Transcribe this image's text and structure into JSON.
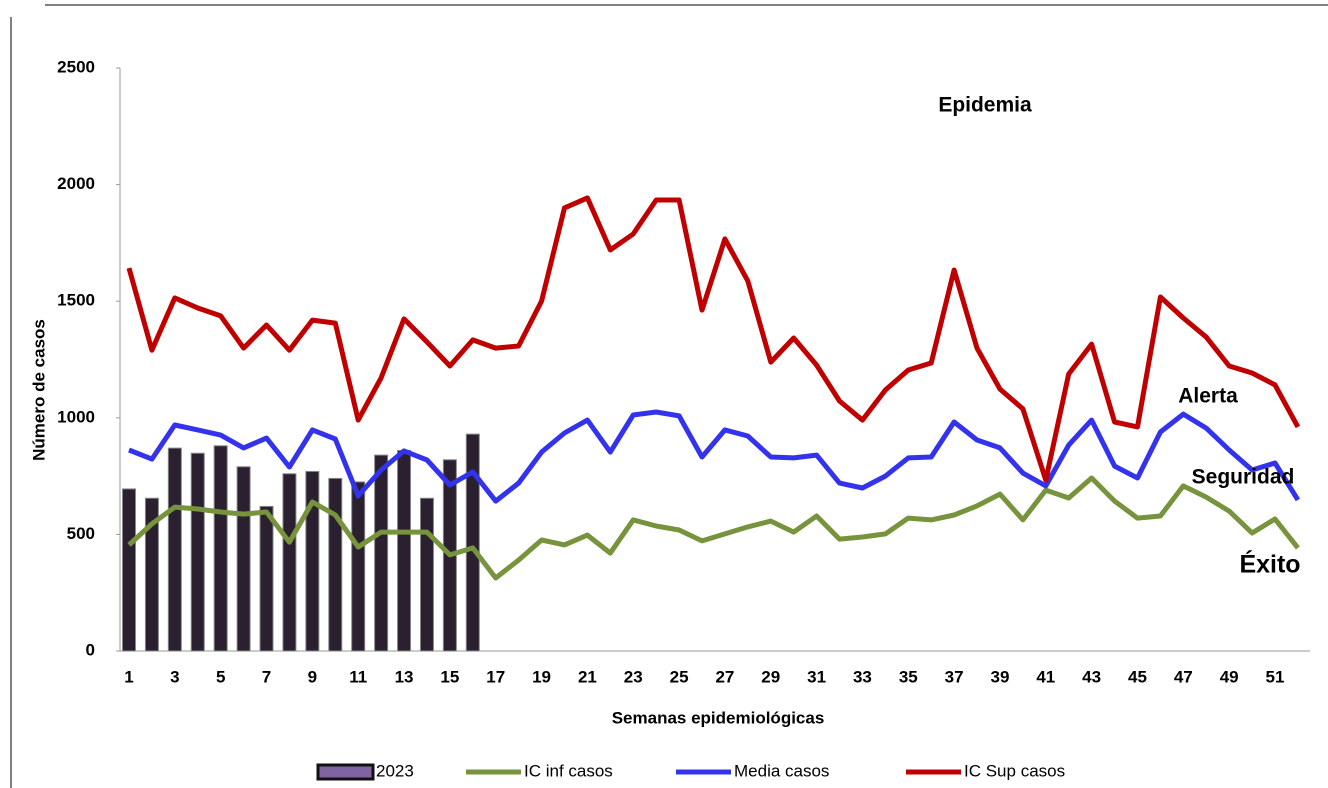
{
  "chart_data": {
    "type": "bar",
    "x_label": "Semanas epidemiológicas",
    "y_label": "Número de casos",
    "categories": [
      1,
      null,
      3,
      null,
      5,
      null,
      7,
      null,
      9,
      null,
      11,
      null,
      13,
      null,
      15,
      null,
      17,
      null,
      19,
      null,
      21,
      null,
      23,
      null,
      25,
      null,
      27,
      null,
      29,
      null,
      31,
      null,
      33,
      null,
      35,
      null,
      37,
      null,
      39,
      null,
      41,
      null,
      43,
      null,
      45,
      null,
      47,
      null,
      49,
      null,
      51,
      null
    ],
    "ylim": [
      0,
      2500
    ],
    "yticks": [
      0,
      500,
      1000,
      1500,
      2000,
      2500
    ],
    "grid": false,
    "legend": "bottom",
    "annotations": [
      "Epidemia",
      "Alerta",
      "Seguridad",
      "Éxito"
    ],
    "series": [
      {
        "name": "2023",
        "type": "bar",
        "color": "#2a2030",
        "values": [
          695,
          655,
          870,
          848,
          880,
          790,
          620,
          760,
          770,
          740,
          725,
          840,
          860,
          655,
          820,
          930,
          null,
          null,
          null,
          null,
          null,
          null,
          null,
          null,
          null,
          null,
          null,
          null,
          null,
          null,
          null,
          null,
          null,
          null,
          null,
          null,
          null,
          null,
          null,
          null,
          null,
          null,
          null,
          null,
          null,
          null,
          null,
          null,
          null,
          null,
          null,
          null
        ]
      },
      {
        "name": "IC inf casos",
        "type": "line",
        "color": "#77933c",
        "values": [
          455,
          545,
          617,
          609,
          596,
          587,
          596,
          467,
          639,
          583,
          446,
          510,
          510,
          510,
          412,
          442,
          313,
          390,
          476,
          455,
          497,
          420,
          562,
          536,
          519,
          472,
          502,
          532,
          557,
          510,
          579,
          480,
          489,
          502,
          570,
          562,
          583,
          622,
          673,
          562,
          690,
          656,
          742,
          643,
          570,
          579,
          708,
          660,
          600,
          506,
          566,
          442
        ]
      },
      {
        "name": "Media casos",
        "type": "line",
        "color": "#3333ee",
        "values": [
          862,
          823,
          969,
          948,
          926,
          871,
          913,
          789,
          948,
          909,
          665,
          776,
          858,
          819,
          712,
          768,
          643,
          720,
          853,
          935,
          990,
          853,
          1012,
          1025,
          1008,
          832,
          948,
          922,
          832,
          828,
          840,
          720,
          699,
          750,
          828,
          832,
          982,
          905,
          871,
          763,
          708,
          883,
          990,
          793,
          742,
          939,
          1016,
          956,
          862,
          776,
          806,
          648
        ]
      },
      {
        "name": "IC Sup casos",
        "type": "line",
        "color": "#c00000",
        "values": [
          1642,
          1290,
          1514,
          1471,
          1437,
          1299,
          1398,
          1290,
          1419,
          1406,
          990,
          1171,
          1424,
          1325,
          1222,
          1334,
          1299,
          1308,
          1501,
          1900,
          1943,
          1720,
          1788,
          1934,
          1934,
          1462,
          1767,
          1587,
          1239,
          1342,
          1226,
          1072,
          990,
          1119,
          1205,
          1235,
          1634,
          1299,
          1123,
          1038,
          733,
          1188,
          1316,
          982,
          961,
          1518,
          1428,
          1346,
          1222,
          1192,
          1141,
          961
        ]
      }
    ]
  }
}
